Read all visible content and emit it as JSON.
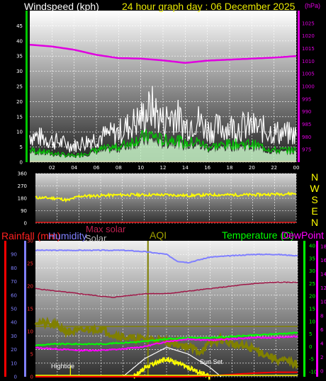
{
  "header": {
    "left_label": "Windspeed (kph)",
    "title": "24 hour graph day : 06 December 2025",
    "right_label": "(hPa)"
  },
  "colors": {
    "wind_gust": "#ffffff",
    "wind_avg": "#00c800",
    "wind_fill": "#c8f5c8",
    "pressure": "#e000e0",
    "direction": "#ffff00",
    "title": "#e8e800",
    "humidity": "#8080ff",
    "temperature": "#00ff00",
    "dewpoint": "#ff00ff",
    "rainfall": "#ff0000",
    "solar": "#ffffff",
    "maxsolar": "#a01848",
    "aqi": "#808000",
    "sunset": "#ffff00"
  },
  "direction": {
    "compass": [
      "N",
      "W",
      "S",
      "E",
      "N"
    ],
    "ticks": [
      "360",
      "270",
      "180",
      "90",
      "0"
    ]
  },
  "bottom": {
    "labels": {
      "rainfall": "Rainfall (mm)",
      "humidity": "Humidity",
      "max_solar": "Max solar",
      "solar": "Solar",
      "aqi": "AQI",
      "temperature": "Temperature (C)",
      "dewpoint": "DewPoint"
    },
    "annotations": {
      "hightide": "Hightide",
      "sunset": "Sun Set"
    }
  },
  "chart_data": [
    {
      "type": "line",
      "x_ticks": [
        "02",
        "04",
        "06",
        "08",
        "10",
        "12",
        "14",
        "16",
        "18",
        "20",
        "22",
        "00"
      ],
      "y_left_ticks": [
        "0",
        "5",
        "10",
        "15",
        "20",
        "25",
        "30",
        "35",
        "40",
        "45"
      ],
      "ylim_left": [
        0,
        50
      ],
      "y_right_ticks": [
        "975",
        "980",
        "985",
        "990",
        "995",
        "1000",
        "1005",
        "1010",
        "1015",
        "1020",
        "1025"
      ],
      "ylim_right": [
        970,
        1030
      ],
      "series": [
        {
          "axis": "right",
          "color_key": "pressure",
          "x": [
            0,
            2,
            4,
            6,
            8,
            10,
            12,
            14,
            16,
            18,
            20,
            22,
            24
          ],
          "values": [
            1016.5,
            1015.8,
            1014.5,
            1012.5,
            1011.2,
            1011.0,
            1010.3,
            1009.3,
            1010.2,
            1010.6,
            1011.0,
            1011.4,
            1012.0
          ]
        },
        {
          "axis": "left",
          "color_key": "wind_gust",
          "x": [
            0,
            2,
            4,
            6,
            8,
            10,
            11,
            12,
            13,
            14,
            15,
            16,
            18,
            20,
            22,
            24
          ],
          "values": [
            10,
            8,
            6,
            9,
            11,
            16,
            20,
            15,
            18,
            13,
            16,
            12,
            13,
            13,
            11,
            10
          ]
        },
        {
          "axis": "left",
          "color_key": "wind_avg",
          "x": [
            0,
            2,
            4,
            6,
            8,
            10,
            11,
            12,
            13,
            14,
            15,
            16,
            18,
            20,
            22,
            24
          ],
          "values": [
            4,
            3,
            2,
            4,
            5,
            8,
            9,
            7,
            8,
            6,
            7,
            5,
            6,
            6,
            4,
            4
          ]
        }
      ]
    },
    {
      "type": "line",
      "x_ticks": [
        "02",
        "04",
        "06",
        "08",
        "10",
        "12",
        "14",
        "16",
        "18",
        "20",
        "22",
        "00"
      ],
      "ylim": [
        0,
        360
      ],
      "series": [
        {
          "color_key": "direction",
          "x": [
            0,
            2,
            3,
            4,
            6,
            8,
            10,
            12,
            14,
            16,
            18,
            20,
            22,
            24
          ],
          "values": [
            185,
            180,
            165,
            195,
            200,
            205,
            205,
            205,
            200,
            205,
            205,
            205,
            210,
            215
          ]
        }
      ]
    },
    {
      "type": "line",
      "y_left_ticks": [
        "0",
        "10",
        "20",
        "30",
        "40",
        "50",
        "60",
        "70",
        "80",
        "90"
      ],
      "ylim_left": [
        0,
        100
      ],
      "y_mid_ticks": [
        "0",
        "5",
        "10",
        "15",
        "20",
        "25",
        "30"
      ],
      "ylim_mid": [
        0,
        30
      ],
      "y_right_ticks": [
        "-10",
        "-5",
        "0",
        "5",
        "10",
        "15",
        "20",
        "25",
        "30",
        "35",
        "40"
      ],
      "ylim_right": [
        -12,
        42
      ],
      "y_far_ticks": [
        "0",
        "2",
        "4",
        "6",
        "8",
        "10",
        "12",
        "14",
        "16",
        "18"
      ],
      "series": [
        {
          "axis": "left",
          "color_key": "humidity",
          "x": [
            0,
            2,
            4,
            6,
            8,
            10,
            12,
            13,
            14,
            16,
            18,
            20,
            22,
            24
          ],
          "values": [
            93,
            93,
            93,
            93,
            93,
            92,
            90,
            85,
            84,
            88,
            89,
            90,
            90,
            89
          ]
        },
        {
          "axis": "right",
          "color_key": "maxsolar",
          "x": [
            0,
            2,
            4,
            6,
            7,
            8,
            10,
            12,
            14,
            16,
            18,
            20,
            22,
            24
          ],
          "values": [
            23,
            22,
            21,
            20,
            19.5,
            20,
            21,
            21,
            22,
            23,
            24,
            25,
            25.5,
            25.5
          ]
        },
        {
          "axis": "right",
          "color_key": "temperature",
          "x": [
            0,
            2,
            4,
            6,
            8,
            10,
            12,
            14,
            16,
            18,
            20,
            22,
            24
          ],
          "values": [
            0.5,
            1,
            1,
            1,
            1.5,
            2,
            3,
            3.5,
            3.5,
            4,
            4.5,
            5,
            5.5
          ]
        },
        {
          "axis": "right",
          "color_key": "dewpoint",
          "x": [
            0,
            2,
            4,
            6,
            8,
            10,
            12,
            14,
            16,
            18,
            20,
            22,
            24
          ],
          "values": [
            -0.5,
            -1,
            -1.5,
            -1.5,
            -1,
            0,
            2,
            3,
            2.5,
            3,
            3.5,
            3.5,
            4
          ]
        },
        {
          "axis": "right",
          "color_key": "aqi",
          "x": [
            0,
            1,
            2,
            3,
            4,
            5,
            6,
            7,
            8,
            9,
            10,
            11,
            12,
            13,
            14,
            15,
            16,
            17,
            18,
            19,
            20,
            21,
            22,
            23,
            24
          ],
          "values": [
            10,
            9,
            8,
            6,
            6,
            7,
            7,
            5,
            4,
            3,
            3,
            3,
            2,
            1,
            0,
            -2,
            1,
            3,
            1,
            0,
            -1,
            -3,
            -5,
            -6,
            -7
          ]
        },
        {
          "axis": "mid",
          "color_key": "solar",
          "x": [
            8,
            10,
            12,
            14,
            16,
            17
          ],
          "values": [
            0,
            4,
            6.5,
            5,
            2,
            0
          ]
        },
        {
          "axis": "mid",
          "color_key": "sunset",
          "x": [
            9,
            10,
            11,
            12,
            13,
            14,
            15,
            16
          ],
          "values": [
            0,
            2,
            3,
            4,
            3,
            2,
            1,
            0
          ]
        },
        {
          "axis": "mid",
          "color_key": "rainfall",
          "x": [
            0,
            14,
            16,
            18,
            20,
            22,
            24
          ],
          "values": [
            0,
            0,
            0.2,
            0.5,
            0.8,
            1,
            1
          ]
        }
      ]
    }
  ]
}
